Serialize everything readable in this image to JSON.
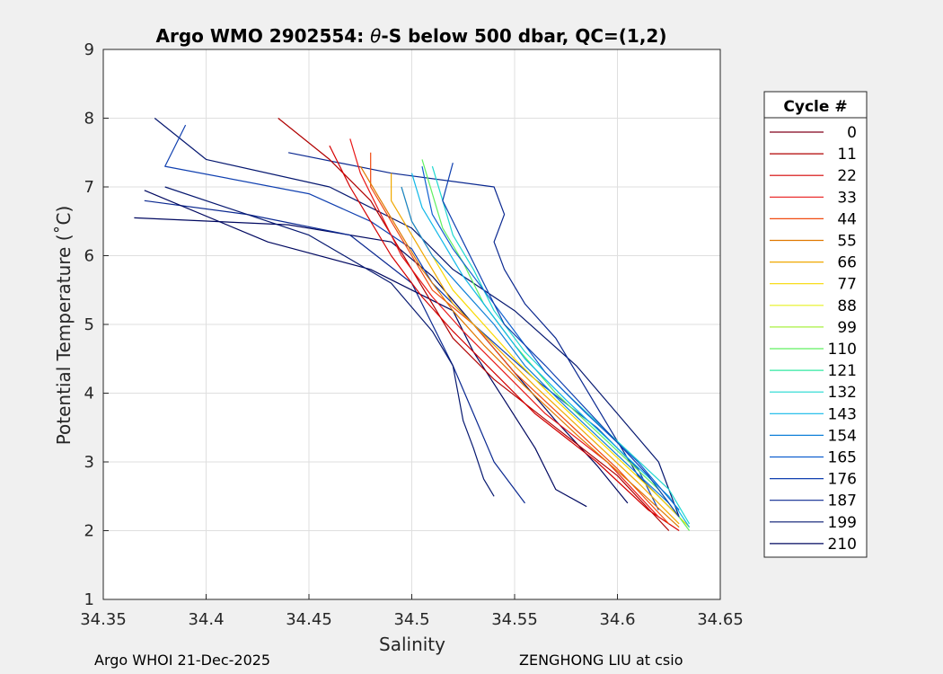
{
  "chart_data": {
    "type": "line",
    "title": "Argo WMO 2902554: θ-S below 500 dbar,  QC=(1,2)",
    "title_parts": {
      "before": "Argo WMO 2902554: ",
      "theta": "θ",
      "after": "-S below 500 dbar,  QC=(1,2)"
    },
    "xlabel": "Salinity",
    "ylabel": "Potential Temperature (˚C)",
    "xlim": [
      34.35,
      34.65
    ],
    "ylim": [
      1,
      9
    ],
    "xticks": [
      "34.35",
      "34.4",
      "34.45",
      "34.5",
      "34.55",
      "34.6",
      "34.65"
    ],
    "yticks": [
      "1",
      "2",
      "3",
      "4",
      "5",
      "6",
      "7",
      "8",
      "9"
    ],
    "grid": true,
    "legend": {
      "title": "Cycle #",
      "position": "right-outside",
      "entries": [
        {
          "label": "0",
          "color": "#80001a"
        },
        {
          "label": "11",
          "color": "#b00000"
        },
        {
          "label": "22",
          "color": "#d40000"
        },
        {
          "label": "33",
          "color": "#e81818"
        },
        {
          "label": "44",
          "color": "#f04a10"
        },
        {
          "label": "55",
          "color": "#e07800"
        },
        {
          "label": "66",
          "color": "#f0a800"
        },
        {
          "label": "77",
          "color": "#f8d800"
        },
        {
          "label": "88",
          "color": "#e6f020"
        },
        {
          "label": "99",
          "color": "#a8f040"
        },
        {
          "label": "110",
          "color": "#60f060"
        },
        {
          "label": "121",
          "color": "#30e8a0"
        },
        {
          "label": "132",
          "color": "#20d8d0"
        },
        {
          "label": "143",
          "color": "#10b8e8"
        },
        {
          "label": "154",
          "color": "#1080d8"
        },
        {
          "label": "165",
          "color": "#1060d0"
        },
        {
          "label": "176",
          "color": "#1040b0"
        },
        {
          "label": "187",
          "color": "#0a2890"
        },
        {
          "label": "199",
          "color": "#061870"
        },
        {
          "label": "210",
          "color": "#000860"
        }
      ]
    },
    "series": [
      {
        "name": "deep-dark-1",
        "color": "#000860",
        "points": [
          [
            34.365,
            6.55
          ],
          [
            34.44,
            6.45
          ],
          [
            34.49,
            6.2
          ],
          [
            34.51,
            5.7
          ],
          [
            34.53,
            5.0
          ],
          [
            34.55,
            4.3
          ],
          [
            34.57,
            3.6
          ],
          [
            34.59,
            2.95
          ],
          [
            34.605,
            2.4
          ]
        ]
      },
      {
        "name": "deep-dark-2",
        "color": "#061870",
        "points": [
          [
            34.375,
            8.0
          ],
          [
            34.4,
            7.4
          ],
          [
            34.46,
            7.0
          ],
          [
            34.5,
            6.4
          ],
          [
            34.52,
            5.8
          ],
          [
            34.55,
            5.2
          ],
          [
            34.58,
            4.4
          ],
          [
            34.6,
            3.7
          ],
          [
            34.62,
            3.0
          ],
          [
            34.63,
            2.2
          ]
        ]
      },
      {
        "name": "deep-dark-3",
        "color": "#0a2890",
        "points": [
          [
            34.37,
            6.8
          ],
          [
            34.42,
            6.6
          ],
          [
            34.47,
            6.3
          ],
          [
            34.5,
            5.6
          ],
          [
            34.51,
            5.0
          ],
          [
            34.52,
            4.4
          ],
          [
            34.53,
            3.7
          ],
          [
            34.54,
            3.0
          ],
          [
            34.555,
            2.4
          ]
        ]
      },
      {
        "name": "deep-dark-4",
        "color": "#000860",
        "points": [
          [
            34.37,
            6.95
          ],
          [
            34.43,
            6.2
          ],
          [
            34.48,
            5.8
          ],
          [
            34.52,
            5.2
          ],
          [
            34.53,
            4.6
          ],
          [
            34.545,
            3.9
          ],
          [
            34.56,
            3.2
          ],
          [
            34.57,
            2.6
          ],
          [
            34.585,
            2.35
          ]
        ]
      },
      {
        "name": "deep-dark-5",
        "color": "#061870",
        "points": [
          [
            34.38,
            7.0
          ],
          [
            34.45,
            6.3
          ],
          [
            34.49,
            5.6
          ],
          [
            34.51,
            4.9
          ],
          [
            34.52,
            4.4
          ],
          [
            34.525,
            3.6
          ],
          [
            34.53,
            3.2
          ],
          [
            34.535,
            2.75
          ],
          [
            34.54,
            2.5
          ]
        ]
      },
      {
        "name": "deep-dark-6",
        "color": "#0a2890",
        "points": [
          [
            34.44,
            7.5
          ],
          [
            34.49,
            7.2
          ],
          [
            34.54,
            7.0
          ],
          [
            34.545,
            6.6
          ],
          [
            34.54,
            6.2
          ],
          [
            34.545,
            5.8
          ],
          [
            34.555,
            5.3
          ],
          [
            34.57,
            4.8
          ],
          [
            34.58,
            4.3
          ],
          [
            34.59,
            3.8
          ],
          [
            34.6,
            3.3
          ],
          [
            34.61,
            2.8
          ],
          [
            34.63,
            2.2
          ]
        ]
      },
      {
        "name": "deep-dark-7",
        "color": "#1040b0",
        "points": [
          [
            34.39,
            7.9
          ],
          [
            34.38,
            7.3
          ],
          [
            34.45,
            6.9
          ],
          [
            34.48,
            6.5
          ],
          [
            34.5,
            6.1
          ],
          [
            34.51,
            5.6
          ],
          [
            34.53,
            5.0
          ],
          [
            34.56,
            4.2
          ],
          [
            34.59,
            3.5
          ],
          [
            34.61,
            2.9
          ],
          [
            34.62,
            2.3
          ]
        ]
      },
      {
        "name": "red-1",
        "color": "#b00000",
        "points": [
          [
            34.435,
            8.0
          ],
          [
            34.46,
            7.4
          ],
          [
            34.48,
            6.8
          ],
          [
            34.49,
            6.3
          ],
          [
            34.5,
            5.8
          ],
          [
            34.51,
            5.3
          ],
          [
            34.52,
            4.8
          ],
          [
            34.54,
            4.2
          ],
          [
            34.57,
            3.5
          ],
          [
            34.6,
            2.8
          ],
          [
            34.625,
            2.0
          ]
        ]
      },
      {
        "name": "red-2",
        "color": "#d40000",
        "points": [
          [
            34.46,
            7.6
          ],
          [
            34.47,
            7.0
          ],
          [
            34.48,
            6.5
          ],
          [
            34.49,
            6.0
          ],
          [
            34.505,
            5.4
          ],
          [
            34.52,
            4.9
          ],
          [
            34.54,
            4.3
          ],
          [
            34.56,
            3.7
          ],
          [
            34.59,
            3.0
          ],
          [
            34.615,
            2.3
          ],
          [
            34.63,
            2.0
          ]
        ]
      },
      {
        "name": "red-3",
        "color": "#e81818",
        "points": [
          [
            34.47,
            7.7
          ],
          [
            34.475,
            7.2
          ],
          [
            34.485,
            6.6
          ],
          [
            34.495,
            6.0
          ],
          [
            34.51,
            5.4
          ],
          [
            34.525,
            4.9
          ],
          [
            34.545,
            4.3
          ],
          [
            34.565,
            3.7
          ],
          [
            34.595,
            3.0
          ],
          [
            34.62,
            2.2
          ]
        ]
      },
      {
        "name": "red-4",
        "color": "#f04a10",
        "points": [
          [
            34.48,
            7.5
          ],
          [
            34.48,
            7.0
          ],
          [
            34.49,
            6.5
          ],
          [
            34.5,
            6.0
          ],
          [
            34.51,
            5.5
          ],
          [
            34.53,
            5.0
          ],
          [
            34.55,
            4.3
          ],
          [
            34.575,
            3.6
          ],
          [
            34.6,
            2.9
          ],
          [
            34.625,
            2.1
          ]
        ]
      },
      {
        "name": "orange-1",
        "color": "#e07800",
        "points": [
          [
            34.475,
            7.3
          ],
          [
            34.485,
            6.8
          ],
          [
            34.495,
            6.3
          ],
          [
            34.505,
            5.8
          ],
          [
            34.52,
            5.2
          ],
          [
            34.535,
            4.7
          ],
          [
            34.555,
            4.1
          ],
          [
            34.58,
            3.4
          ],
          [
            34.61,
            2.6
          ],
          [
            34.63,
            2.05
          ]
        ]
      },
      {
        "name": "yellow-1",
        "color": "#f0a800",
        "points": [
          [
            34.49,
            7.2
          ],
          [
            34.49,
            6.8
          ],
          [
            34.5,
            6.3
          ],
          [
            34.51,
            5.8
          ],
          [
            34.52,
            5.3
          ],
          [
            34.54,
            4.7
          ],
          [
            34.56,
            4.1
          ],
          [
            34.585,
            3.4
          ],
          [
            34.61,
            2.7
          ],
          [
            34.63,
            2.1
          ]
        ]
      },
      {
        "name": "yellow-2",
        "color": "#f8d800",
        "points": [
          [
            34.495,
            7.0
          ],
          [
            34.5,
            6.5
          ],
          [
            34.51,
            6.0
          ],
          [
            34.52,
            5.5
          ],
          [
            34.535,
            5.0
          ],
          [
            34.55,
            4.5
          ],
          [
            34.57,
            3.9
          ],
          [
            34.595,
            3.2
          ],
          [
            34.62,
            2.5
          ],
          [
            34.635,
            2.05
          ]
        ]
      },
      {
        "name": "green-1",
        "color": "#60f060",
        "points": [
          [
            34.505,
            7.4
          ],
          [
            34.51,
            6.9
          ],
          [
            34.515,
            6.4
          ],
          [
            34.525,
            5.9
          ],
          [
            34.535,
            5.3
          ],
          [
            34.55,
            4.7
          ],
          [
            34.57,
            4.0
          ],
          [
            34.595,
            3.3
          ],
          [
            34.62,
            2.6
          ],
          [
            34.635,
            2.0
          ]
        ]
      },
      {
        "name": "cyan-1",
        "color": "#20d8d0",
        "points": [
          [
            34.51,
            7.3
          ],
          [
            34.515,
            6.8
          ],
          [
            34.52,
            6.3
          ],
          [
            34.53,
            5.8
          ],
          [
            34.54,
            5.2
          ],
          [
            34.555,
            4.6
          ],
          [
            34.575,
            4.0
          ],
          [
            34.6,
            3.3
          ],
          [
            34.625,
            2.6
          ],
          [
            34.635,
            2.1
          ]
        ]
      },
      {
        "name": "blue-1",
        "color": "#10b8e8",
        "points": [
          [
            34.5,
            7.2
          ],
          [
            34.505,
            6.7
          ],
          [
            34.515,
            6.2
          ],
          [
            34.525,
            5.7
          ],
          [
            34.54,
            5.1
          ],
          [
            34.555,
            4.5
          ],
          [
            34.575,
            3.9
          ],
          [
            34.6,
            3.2
          ],
          [
            34.625,
            2.5
          ],
          [
            34.635,
            2.05
          ]
        ]
      },
      {
        "name": "blue-2",
        "color": "#1080d8",
        "points": [
          [
            34.495,
            7.0
          ],
          [
            34.5,
            6.5
          ],
          [
            34.51,
            6.0
          ],
          [
            34.525,
            5.5
          ],
          [
            34.54,
            5.0
          ],
          [
            34.555,
            4.4
          ],
          [
            34.575,
            3.8
          ],
          [
            34.6,
            3.1
          ],
          [
            34.625,
            2.4
          ]
        ]
      },
      {
        "name": "blue-3",
        "color": "#1060d0",
        "points": [
          [
            34.505,
            7.3
          ],
          [
            34.51,
            6.6
          ],
          [
            34.52,
            6.1
          ],
          [
            34.535,
            5.5
          ],
          [
            34.55,
            4.9
          ],
          [
            34.565,
            4.3
          ],
          [
            34.585,
            3.7
          ],
          [
            34.61,
            3.0
          ],
          [
            34.63,
            2.3
          ]
        ]
      },
      {
        "name": "blue-4",
        "color": "#1040b0",
        "points": [
          [
            34.52,
            7.35
          ],
          [
            34.515,
            6.8
          ],
          [
            34.525,
            6.2
          ],
          [
            34.535,
            5.6
          ],
          [
            34.545,
            5.0
          ],
          [
            34.565,
            4.4
          ],
          [
            34.59,
            3.6
          ],
          [
            34.615,
            2.8
          ],
          [
            34.63,
            2.2
          ]
        ]
      }
    ]
  },
  "footer": {
    "left": "Argo WHOI 21-Dec-2025",
    "right": "ZENGHONG LIU at csio"
  }
}
